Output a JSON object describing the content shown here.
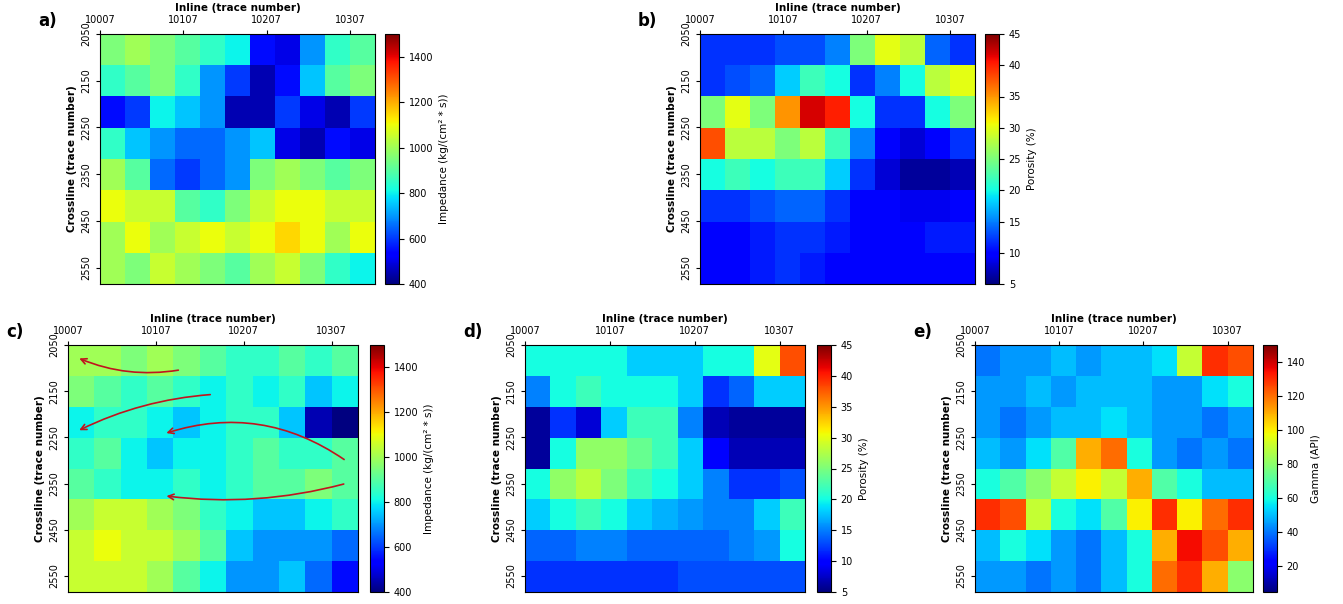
{
  "chart_data": [
    {
      "type": "heatmap",
      "title": "a)",
      "xlabel": "Inline (trace number)",
      "ylabel": "Crossline (trace number)",
      "xlim": [
        10007,
        10337
      ],
      "ylim": [
        2585,
        2050
      ],
      "xticks": [
        10007,
        10107,
        10207,
        10307
      ],
      "yticks": [
        2050,
        2150,
        2250,
        2350,
        2450,
        2550
      ],
      "x": [
        10022,
        10052,
        10082,
        10112,
        10142,
        10172,
        10202,
        10232,
        10262,
        10292,
        10322
      ],
      "y": [
        2083,
        2150,
        2217,
        2284,
        2351,
        2418,
        2485,
        2552
      ],
      "values": [
        [
          950,
          1000,
          950,
          900,
          850,
          800,
          550,
          500,
          700,
          850,
          900
        ],
        [
          850,
          900,
          950,
          850,
          700,
          600,
          450,
          550,
          750,
          900,
          950
        ],
        [
          550,
          600,
          800,
          750,
          700,
          450,
          450,
          600,
          500,
          450,
          600
        ],
        [
          850,
          750,
          700,
          650,
          650,
          700,
          750,
          500,
          450,
          550,
          500
        ],
        [
          1000,
          900,
          650,
          600,
          650,
          700,
          950,
          1000,
          950,
          900,
          950
        ],
        [
          1100,
          1050,
          1050,
          900,
          850,
          950,
          1050,
          1100,
          1100,
          1050,
          1050
        ],
        [
          1000,
          1100,
          1000,
          1050,
          1100,
          1050,
          1100,
          1150,
          1100,
          1000,
          1100
        ],
        [
          1000,
          950,
          1050,
          1000,
          950,
          900,
          1000,
          1050,
          950,
          850,
          800
        ]
      ],
      "colorbar": {
        "label": "Impedance (kg/(cm² * s))",
        "range": [
          400,
          1500
        ],
        "ticks": [
          400,
          600,
          800,
          1000,
          1200,
          1400
        ]
      }
    },
    {
      "type": "heatmap",
      "title": "b)",
      "xlabel": "Inline (trace number)",
      "ylabel": "Crossline (trace number)",
      "xlim": [
        10007,
        10337
      ],
      "ylim": [
        2585,
        2050
      ],
      "xticks": [
        10007,
        10107,
        10207,
        10307
      ],
      "yticks": [
        2050,
        2150,
        2250,
        2350,
        2450,
        2550
      ],
      "x": [
        10022,
        10052,
        10082,
        10112,
        10142,
        10172,
        10202,
        10232,
        10262,
        10292,
        10322
      ],
      "y": [
        2083,
        2150,
        2217,
        2284,
        2351,
        2418,
        2485,
        2552
      ],
      "values": [
        [
          12,
          12,
          12,
          13,
          13,
          15,
          25,
          30,
          28,
          14,
          12
        ],
        [
          12,
          13,
          14,
          18,
          22,
          20,
          12,
          15,
          20,
          28,
          30
        ],
        [
          25,
          30,
          25,
          35,
          42,
          40,
          20,
          12,
          12,
          20,
          25
        ],
        [
          38,
          28,
          28,
          25,
          28,
          22,
          15,
          10,
          8,
          10,
          12
        ],
        [
          20,
          22,
          20,
          22,
          22,
          18,
          12,
          8,
          6,
          6,
          7
        ],
        [
          12,
          12,
          13,
          14,
          14,
          12,
          10,
          10,
          9,
          9,
          10
        ],
        [
          10,
          10,
          11,
          12,
          12,
          11,
          10,
          10,
          10,
          11,
          11
        ],
        [
          10,
          10,
          11,
          12,
          11,
          10,
          10,
          10,
          10,
          10,
          10
        ]
      ],
      "colorbar": {
        "label": "Porosity (%)",
        "range": [
          5,
          45
        ],
        "ticks": [
          5,
          10,
          15,
          20,
          25,
          30,
          35,
          40,
          45
        ]
      }
    },
    {
      "type": "heatmap",
      "title": "c)",
      "xlabel": "Inline (trace number)",
      "ylabel": "Crossline (trace number)",
      "xlim": [
        10007,
        10337
      ],
      "ylim": [
        2585,
        2050
      ],
      "xticks": [
        10007,
        10107,
        10207,
        10307
      ],
      "yticks": [
        2050,
        2150,
        2250,
        2350,
        2450,
        2550
      ],
      "x": [
        10022,
        10052,
        10082,
        10112,
        10142,
        10172,
        10202,
        10232,
        10262,
        10292,
        10322
      ],
      "y": [
        2083,
        2150,
        2217,
        2284,
        2351,
        2418,
        2485,
        2552
      ],
      "values": [
        [
          1000,
          1000,
          950,
          1000,
          950,
          900,
          850,
          850,
          900,
          850,
          900
        ],
        [
          950,
          900,
          850,
          900,
          850,
          800,
          850,
          800,
          850,
          750,
          800
        ],
        [
          800,
          850,
          850,
          800,
          750,
          800,
          850,
          850,
          750,
          450,
          400
        ],
        [
          850,
          900,
          800,
          750,
          800,
          800,
          850,
          900,
          850,
          850,
          900
        ],
        [
          900,
          850,
          800,
          800,
          850,
          800,
          850,
          900,
          900,
          950,
          900
        ],
        [
          1000,
          1050,
          1050,
          1000,
          950,
          850,
          800,
          750,
          750,
          800,
          850
        ],
        [
          1050,
          1100,
          1050,
          1050,
          1000,
          900,
          750,
          700,
          700,
          700,
          650
        ],
        [
          1050,
          1050,
          1050,
          1000,
          900,
          800,
          700,
          700,
          750,
          650,
          550
        ]
      ],
      "colorbar": {
        "label": "Impedance (kg/(cm² * s))",
        "range": [
          400,
          1500
        ],
        "ticks": [
          400,
          600,
          800,
          1000,
          1200,
          1400
        ]
      }
    },
    {
      "type": "heatmap",
      "title": "d)",
      "xlabel": "Inline (trace number)",
      "ylabel": "Crossline (trace number)",
      "xlim": [
        10007,
        10337
      ],
      "ylim": [
        2585,
        2050
      ],
      "xticks": [
        10007,
        10107,
        10207,
        10307
      ],
      "yticks": [
        2050,
        2150,
        2250,
        2350,
        2450,
        2550
      ],
      "x": [
        10022,
        10052,
        10082,
        10112,
        10142,
        10172,
        10202,
        10232,
        10262,
        10292,
        10322
      ],
      "y": [
        2083,
        2150,
        2217,
        2284,
        2351,
        2418,
        2485,
        2552
      ],
      "values": [
        [
          20,
          20,
          20,
          20,
          18,
          18,
          18,
          20,
          20,
          30,
          38
        ],
        [
          15,
          20,
          22,
          20,
          20,
          20,
          18,
          12,
          14,
          18,
          18
        ],
        [
          6,
          12,
          8,
          18,
          22,
          22,
          15,
          7,
          6,
          6,
          6
        ],
        [
          6,
          20,
          26,
          26,
          24,
          22,
          18,
          10,
          7,
          7,
          7
        ],
        [
          20,
          26,
          28,
          25,
          22,
          20,
          18,
          15,
          12,
          12,
          13
        ],
        [
          18,
          20,
          22,
          20,
          18,
          17,
          16,
          15,
          15,
          18,
          22
        ],
        [
          14,
          14,
          15,
          15,
          14,
          14,
          14,
          14,
          15,
          16,
          20
        ],
        [
          12,
          12,
          12,
          12,
          12,
          12,
          13,
          13,
          13,
          13,
          13
        ]
      ],
      "colorbar": {
        "label": "Porosity (%)",
        "range": [
          5,
          45
        ],
        "ticks": [
          5,
          10,
          15,
          20,
          25,
          30,
          35,
          40,
          45
        ]
      }
    },
    {
      "type": "heatmap",
      "title": "e)",
      "xlabel": "Inline (trace number)",
      "ylabel": "Crossline (trace number)",
      "xlim": [
        10007,
        10337
      ],
      "ylim": [
        2585,
        2050
      ],
      "xticks": [
        10007,
        10107,
        10207,
        10307
      ],
      "yticks": [
        2050,
        2150,
        2250,
        2350,
        2450,
        2550
      ],
      "x": [
        10022,
        10052,
        10082,
        10112,
        10142,
        10172,
        10202,
        10232,
        10262,
        10292,
        10322
      ],
      "y": [
        2083,
        2150,
        2217,
        2284,
        2351,
        2418,
        2485,
        2552
      ],
      "values": [
        [
          40,
          45,
          45,
          50,
          45,
          50,
          50,
          55,
          90,
          130,
          125
        ],
        [
          45,
          45,
          50,
          45,
          50,
          50,
          50,
          45,
          45,
          55,
          60
        ],
        [
          45,
          40,
          45,
          50,
          50,
          55,
          50,
          45,
          45,
          40,
          45
        ],
        [
          50,
          45,
          55,
          70,
          110,
          120,
          60,
          45,
          40,
          45,
          40
        ],
        [
          60,
          70,
          80,
          90,
          100,
          90,
          110,
          70,
          60,
          50,
          50
        ],
        [
          130,
          125,
          90,
          60,
          55,
          70,
          100,
          130,
          100,
          120,
          130
        ],
        [
          50,
          60,
          55,
          45,
          40,
          50,
          60,
          110,
          135,
          125,
          110
        ],
        [
          45,
          45,
          40,
          45,
          40,
          50,
          60,
          120,
          130,
          110,
          80
        ]
      ],
      "colorbar": {
        "label": "Gamma (API)",
        "range": [
          5,
          150
        ],
        "ticks": [
          20,
          40,
          60,
          80,
          100,
          120,
          140
        ]
      }
    }
  ]
}
